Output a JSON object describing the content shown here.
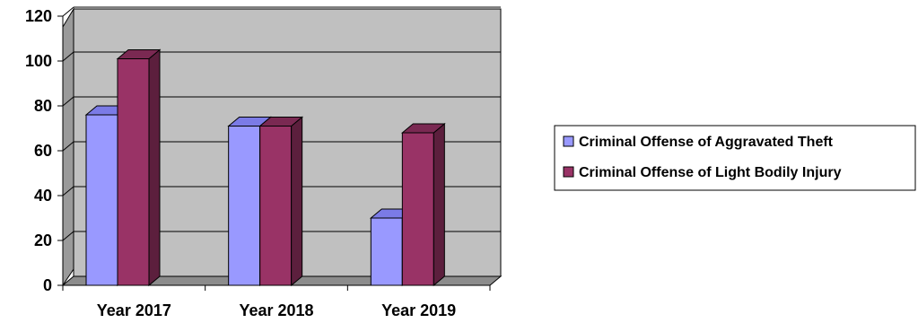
{
  "chart_data": {
    "type": "bar",
    "title": "",
    "xlabel": "",
    "ylabel": "",
    "categories": [
      "Year 2017",
      "Year 2018",
      "Year 2019"
    ],
    "series": [
      {
        "name": "Criminal Offense of Aggravated Theft",
        "values": [
          76,
          71,
          30
        ],
        "color": "#9999ff",
        "side_color": "#7070d8",
        "top_color": "#7b7be6"
      },
      {
        "name": "Criminal Offense of Light Bodily Injury",
        "values": [
          101,
          71,
          68
        ],
        "color": "#993366",
        "side_color": "#5c1f3d",
        "top_color": "#7a2952"
      }
    ],
    "ylim": [
      0,
      120
    ],
    "yticks": [
      "0",
      "20",
      "40",
      "60",
      "80",
      "100",
      "120"
    ],
    "grid": true,
    "three_d": true,
    "legend_position": "right",
    "colors": {
      "wall": "#c0c0c0",
      "side_wall": "#9a9a9a",
      "floor": "#8c8c8c",
      "grid": "#000000"
    }
  }
}
